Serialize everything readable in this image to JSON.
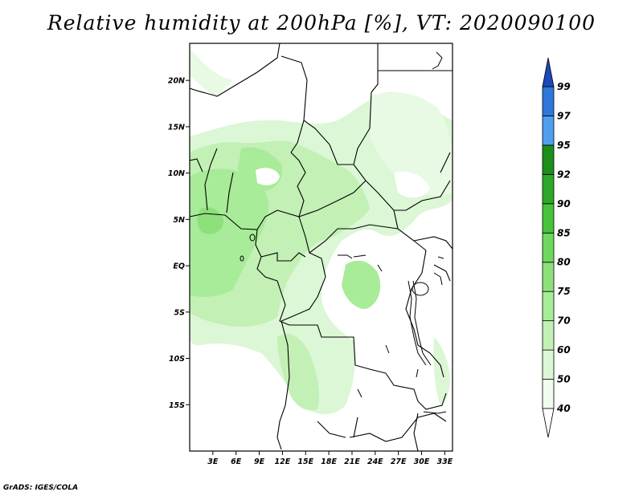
{
  "title": "Relative humidity at 200hPa [%], VT: 2020090100",
  "credit": "GrADS: IGES/COLA",
  "map": {
    "variable": "Relative humidity",
    "level": "200hPa",
    "units": "%",
    "valid_time": "2020090100",
    "lon_range_deg": [
      0,
      34
    ],
    "lat_range_deg": [
      -20,
      24
    ],
    "lon_ticks": [
      "3E",
      "6E",
      "9E",
      "12E",
      "15E",
      "18E",
      "21E",
      "24E",
      "27E",
      "30E",
      "33E"
    ],
    "lat_ticks": [
      "20N",
      "15N",
      "10N",
      "5N",
      "EQ",
      "5S",
      "10S",
      "15S"
    ]
  },
  "colorbar": {
    "levels": [
      "40",
      "50",
      "60",
      "70",
      "75",
      "80",
      "85",
      "90",
      "92",
      "95",
      "97",
      "99"
    ],
    "colors": [
      "#f0fced",
      "#dbf7d5",
      "#c2f0b5",
      "#a8eb98",
      "#8ee07a",
      "#6ed85e",
      "#45c43b",
      "#2ea82a",
      "#1a8f1a",
      "#4f9fee",
      "#2e78dc",
      "#1e5fcf",
      "#1b49b8"
    ],
    "underflow_color": "#ffffff"
  }
}
